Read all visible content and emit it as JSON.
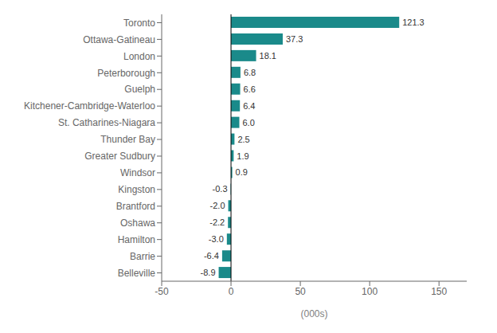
{
  "chart_data": {
    "type": "bar",
    "orientation": "horizontal",
    "xlabel": "(000s)",
    "categories": [
      "Belleville",
      "Barrie",
      "Hamilton",
      "Oshawa",
      "Brantford",
      "Kingston",
      "Windsor",
      "Greater Sudbury",
      "Thunder Bay",
      "St. Catharines-Niagara",
      "Kitchener-Cambridge-Waterloo",
      "Guelph",
      "Peterborough",
      "London",
      "Ottawa-Gatineau",
      "Toronto"
    ],
    "values": [
      -8.9,
      -6.4,
      -3.0,
      -2.2,
      -2.0,
      -0.3,
      0.9,
      1.9,
      2.5,
      6.0,
      6.4,
      6.6,
      6.8,
      18.1,
      37.3,
      121.3
    ],
    "value_labels": [
      "-8.9",
      "-6.4",
      "-3.0",
      "-2.2",
      "-2.0",
      "-0.3",
      "0.9",
      "1.9",
      "2.5",
      "6.0",
      "6.4",
      "6.6",
      "6.8",
      "18.1",
      "37.3",
      "121.3"
    ],
    "data_labels": true,
    "color": "#1a8a8a",
    "xlim": [
      -50,
      170
    ],
    "xticks": [
      -50,
      0,
      50,
      100,
      150
    ],
    "grid": false
  }
}
